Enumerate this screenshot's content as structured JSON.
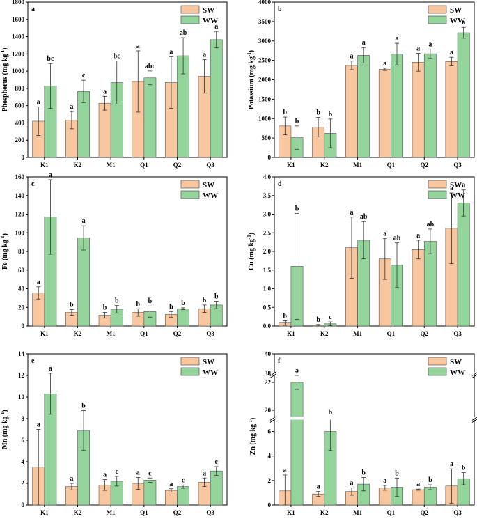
{
  "colors": {
    "sw": "#f9c79f",
    "ww": "#93d49a",
    "edge": "#555555"
  },
  "chart_data": [
    {
      "type": "bar",
      "panel": "a",
      "ylabel": "Phosphorus (mg kg⁻¹)",
      "categories": [
        "K1",
        "K2",
        "M1",
        "Q1",
        "Q2",
        "Q3"
      ],
      "ylim": [
        0,
        1800
      ],
      "yticks": [
        0,
        200,
        400,
        600,
        800,
        1000,
        1200,
        1400,
        1600,
        1800
      ],
      "legend": "top-right",
      "series": [
        {
          "name": "SW",
          "values": [
            420,
            432,
            628,
            880,
            868,
            940
          ],
          "errors": [
            165,
            100,
            80,
            355,
            300,
            195
          ],
          "letters": [
            "a",
            "a",
            "a",
            "a",
            "a",
            "a"
          ]
        },
        {
          "name": "WW",
          "values": [
            828,
            765,
            867,
            922,
            1178,
            1365
          ],
          "errors": [
            260,
            130,
            250,
            80,
            210,
            95
          ],
          "letters": [
            "bc",
            "c",
            "bc",
            "abc",
            "ab",
            "a"
          ]
        }
      ]
    },
    {
      "type": "bar",
      "panel": "b",
      "ylabel": "Potassium (mg kg⁻¹)",
      "categories": [
        "K1",
        "K2",
        "M1",
        "Q1",
        "Q2",
        "Q3"
      ],
      "ylim": [
        0,
        4000
      ],
      "yticks": [
        0,
        500,
        1000,
        1500,
        2000,
        2500,
        3000,
        3500,
        4000
      ],
      "legend": "top-right",
      "series": [
        {
          "name": "SW",
          "values": [
            810,
            780,
            2370,
            2270,
            2450,
            2470
          ],
          "errors": [
            230,
            250,
            110,
            30,
            230,
            110
          ],
          "letters": [
            "b",
            "b",
            "a",
            "a",
            "a",
            "a"
          ]
        },
        {
          "name": "WW",
          "values": [
            510,
            620,
            2630,
            2660,
            2670,
            3210
          ],
          "errors": [
            300,
            370,
            200,
            280,
            120,
            140
          ],
          "letters": [
            "b",
            "b",
            "a",
            "a",
            "a",
            "a"
          ]
        }
      ]
    },
    {
      "type": "bar",
      "panel": "c",
      "ylabel": "Fe (mg kg⁻¹)",
      "categories": [
        "K1",
        "K2",
        "M1",
        "Q1",
        "Q2",
        "Q3"
      ],
      "ylim": [
        0,
        160
      ],
      "yticks": [
        0,
        20,
        40,
        60,
        80,
        100,
        120,
        140,
        160
      ],
      "legend": "top-right",
      "series": [
        {
          "name": "SW",
          "values": [
            35.5,
            14.5,
            11.5,
            14.5,
            12.5,
            18.5
          ],
          "errors": [
            6.5,
            3,
            3,
            4,
            3,
            4
          ],
          "letters": [
            "a",
            "b",
            "b",
            "b",
            "b",
            "b"
          ]
        },
        {
          "name": "WW",
          "values": [
            117,
            94.5,
            18,
            15.5,
            18.5,
            22.5
          ],
          "errors": [
            40,
            13,
            4,
            6,
            1,
            4
          ],
          "letters": [
            "a",
            "a",
            "b",
            "b",
            "b",
            "b"
          ]
        }
      ]
    },
    {
      "type": "bar",
      "panel": "d",
      "ylabel": "Cu (mg kg⁻¹)",
      "categories": [
        "K1",
        "K2",
        "M1",
        "Q1",
        "Q2",
        "Q3"
      ],
      "ylim": [
        0,
        4.0
      ],
      "yticks": [
        0.0,
        0.5,
        1.0,
        1.5,
        2.0,
        2.5,
        3.0,
        3.5,
        4.0
      ],
      "legend": "top-right",
      "series": [
        {
          "name": "SW",
          "values": [
            0.08,
            0.02,
            2.1,
            1.8,
            2.05,
            2.62
          ],
          "errors": [
            0.06,
            0.02,
            0.82,
            0.55,
            0.25,
            0.95
          ],
          "letters": [
            "b",
            "b",
            "a",
            "a",
            "a",
            "a"
          ]
        },
        {
          "name": "WW",
          "values": [
            1.6,
            0.06,
            2.3,
            1.63,
            2.27,
            3.3
          ],
          "errors": [
            1.42,
            0.05,
            0.5,
            0.6,
            0.33,
            0.35
          ],
          "letters": [
            "b",
            "c",
            "ab",
            "ab",
            "ab",
            "a"
          ]
        }
      ]
    },
    {
      "type": "bar",
      "panel": "e",
      "ylabel": "Mn (mg kg⁻¹)",
      "categories": [
        "K1",
        "K2",
        "M1",
        "Q1",
        "Q2",
        "Q3"
      ],
      "ylim": [
        0,
        14
      ],
      "yticks": [
        0,
        2,
        4,
        6,
        8,
        10,
        12,
        14
      ],
      "legend": "top-right",
      "series": [
        {
          "name": "SW",
          "values": [
            3.5,
            1.7,
            1.85,
            2.0,
            1.35,
            2.1
          ],
          "errors": [
            3.5,
            0.3,
            0.5,
            0.55,
            0.15,
            0.4
          ],
          "letters": [
            "a",
            "a",
            "a",
            "a",
            "a",
            "a"
          ]
        },
        {
          "name": "WW",
          "values": [
            10.3,
            6.9,
            2.2,
            2.3,
            1.7,
            3.15
          ],
          "errors": [
            1.9,
            1.85,
            0.45,
            0.2,
            0.15,
            0.4
          ],
          "letters": [
            "a",
            "b",
            "c",
            "c",
            "c",
            "c"
          ]
        }
      ]
    },
    {
      "type": "bar",
      "panel": "f",
      "ylabel": "Zn (mg kg⁻¹)",
      "categories": [
        "K1",
        "K2",
        "M1",
        "Q1",
        "Q2",
        "Q3"
      ],
      "broken_axis": {
        "lower": [
          0,
          7
        ],
        "upper": [
          19.5,
          22.6
        ],
        "top": [
          38,
          40
        ]
      },
      "yticks_lower": [
        0,
        2,
        4,
        6
      ],
      "yticks_upper": [
        20,
        22
      ],
      "yticks_top": [
        38,
        40
      ],
      "legend": "top-right",
      "series": [
        {
          "name": "SW",
          "values": [
            1.15,
            0.9,
            1.1,
            1.4,
            1.25,
            1.55
          ],
          "errors": [
            1.3,
            0.2,
            0.3,
            0.2,
            0.05,
            1.4
          ],
          "letters": [
            "a",
            "a",
            "a",
            "a",
            "a",
            "a"
          ]
        },
        {
          "name": "WW",
          "values": [
            22.0,
            6.0,
            1.7,
            1.45,
            1.45,
            2.15
          ],
          "errors": [
            0.5,
            1.55,
            0.55,
            0.75,
            0.2,
            0.5
          ],
          "letters": [
            "a",
            "b",
            "b",
            "b",
            "b",
            "b"
          ]
        }
      ]
    }
  ]
}
